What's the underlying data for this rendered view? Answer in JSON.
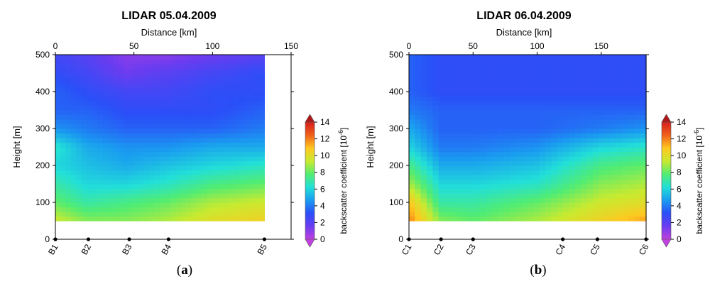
{
  "chart_data": [
    {
      "type": "heatmap",
      "panel_label": "a",
      "title": "LIDAR 05.04.2009",
      "xlabel": "Distance [km]",
      "ylabel": "Height [m]",
      "xlim": [
        0,
        150
      ],
      "x_ticks": [
        0,
        50,
        100,
        150
      ],
      "ylim": [
        0,
        500
      ],
      "y_ticks": [
        0,
        100,
        200,
        300,
        400,
        500
      ],
      "data_x_range": [
        0,
        133
      ],
      "data_y_range": [
        50,
        500
      ],
      "stations": [
        {
          "name": "B1",
          "x": 0
        },
        {
          "name": "B2",
          "x": 21
        },
        {
          "name": "B3",
          "x": 47
        },
        {
          "name": "B4",
          "x": 72
        },
        {
          "name": "B5",
          "x": 133
        }
      ],
      "backscatter_profile_x": [
        0,
        20,
        45,
        70,
        100,
        133
      ],
      "backscatter_profile_heights": [
        50,
        100,
        150,
        200,
        250,
        300,
        350,
        400,
        450,
        500
      ],
      "backscatter_profile_values": [
        [
          9.5,
          8.5,
          8.5,
          9.0,
          10.0,
          10.5
        ],
        [
          8.0,
          7.0,
          7.5,
          8.0,
          9.0,
          9.5
        ],
        [
          7.0,
          6.0,
          6.0,
          6.5,
          7.5,
          8.0
        ],
        [
          6.0,
          5.5,
          5.0,
          5.5,
          6.0,
          6.5
        ],
        [
          6.5,
          5.0,
          4.5,
          4.5,
          5.0,
          5.0
        ],
        [
          4.5,
          4.0,
          3.5,
          3.5,
          3.5,
          4.0
        ],
        [
          3.5,
          3.5,
          3.0,
          3.0,
          3.0,
          3.5
        ],
        [
          3.5,
          3.0,
          2.5,
          2.5,
          3.0,
          3.0
        ],
        [
          3.0,
          2.5,
          1.5,
          2.0,
          2.5,
          3.0
        ],
        [
          2.5,
          2.0,
          1.0,
          1.0,
          1.5,
          2.0
        ]
      ]
    },
    {
      "type": "heatmap",
      "panel_label": "b",
      "title": "LIDAR 06.04.2009",
      "xlabel": "Distance [km]",
      "ylabel": "Height [m]",
      "xlim": [
        0,
        185
      ],
      "x_ticks": [
        0,
        50,
        100,
        150
      ],
      "ylim": [
        0,
        500
      ],
      "y_ticks": [
        0,
        100,
        200,
        300,
        400,
        500
      ],
      "data_x_range": [
        0,
        185
      ],
      "data_y_range": [
        50,
        500
      ],
      "stations": [
        {
          "name": "C1",
          "x": 0
        },
        {
          "name": "C2",
          "x": 25
        },
        {
          "name": "C3",
          "x": 50
        },
        {
          "name": "C4",
          "x": 120
        },
        {
          "name": "C5",
          "x": 147
        },
        {
          "name": "C6",
          "x": 185
        }
      ],
      "backscatter_profile_x": [
        0,
        25,
        50,
        100,
        150,
        185
      ],
      "backscatter_profile_heights": [
        50,
        100,
        150,
        200,
        250,
        300,
        350,
        400,
        450,
        500
      ],
      "backscatter_profile_values": [
        [
          12.0,
          8.5,
          8.0,
          9.0,
          10.5,
          11.5
        ],
        [
          11.0,
          7.0,
          7.0,
          8.0,
          9.5,
          10.0
        ],
        [
          9.0,
          6.0,
          6.0,
          6.5,
          8.5,
          9.0
        ],
        [
          7.5,
          5.0,
          5.0,
          5.5,
          7.5,
          8.0
        ],
        [
          6.0,
          4.0,
          4.0,
          4.5,
          6.0,
          6.5
        ],
        [
          5.0,
          3.5,
          3.5,
          3.5,
          4.0,
          4.5
        ],
        [
          4.0,
          3.5,
          3.5,
          3.5,
          3.5,
          3.5
        ],
        [
          3.5,
          3.0,
          3.0,
          3.0,
          3.0,
          3.0
        ],
        [
          3.5,
          3.0,
          3.0,
          3.0,
          3.0,
          3.0
        ],
        [
          3.5,
          3.0,
          3.0,
          3.0,
          3.0,
          3.0
        ]
      ]
    }
  ],
  "colorbar": {
    "label": "backscatter coefficient [10",
    "label_exponent": "-6",
    "label_close": "]",
    "min": 0,
    "max": 14,
    "ticks": [
      0,
      2,
      4,
      6,
      8,
      10,
      12,
      14
    ],
    "colors": [
      "#c040e0",
      "#6a3cf0",
      "#2a4ff8",
      "#1a9cf0",
      "#22e0d8",
      "#52ec72",
      "#c8ea30",
      "#ffc820",
      "#f0601a",
      "#d81e1e"
    ]
  },
  "panels": [
    {
      "label_open": "(",
      "letter": "a",
      "label_close": ")"
    },
    {
      "label_open": "(",
      "letter": "b",
      "label_close": ")"
    }
  ]
}
